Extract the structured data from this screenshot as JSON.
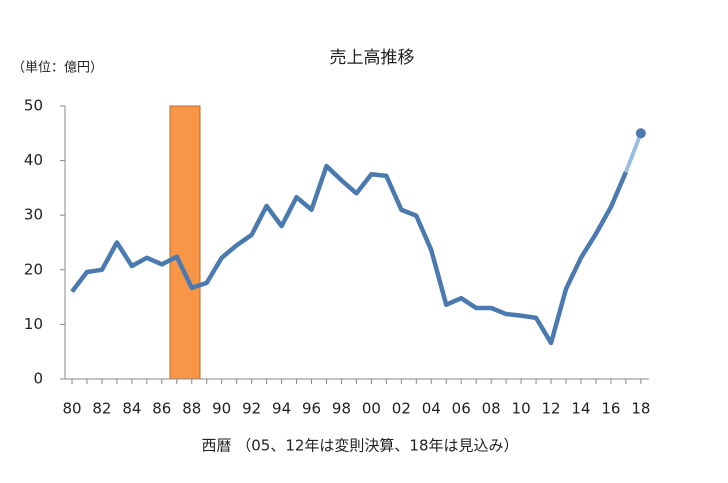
{
  "chart_data": {
    "type": "line",
    "title": "売上高推移",
    "y_label": "（単位：億円）",
    "x_label": "西暦 （05、12年は変則決算、18年は見込み）",
    "categories": [
      "80",
      null,
      "82",
      null,
      "84",
      null,
      "86",
      null,
      "88",
      null,
      "90",
      null,
      "92",
      null,
      "94",
      null,
      "96",
      null,
      "98",
      null,
      "00",
      null,
      "02",
      null,
      "04",
      null,
      "06",
      null,
      "08",
      null,
      "10",
      null,
      "12",
      null,
      "14",
      null,
      "16",
      null,
      "18"
    ],
    "series": [
      {
        "color": "#4a7ab0",
        "values": [
          16,
          19.6,
          20,
          25,
          20.7,
          22.2,
          21,
          22.4,
          16.7,
          17.6,
          22.2,
          24.5,
          26.4,
          31.7,
          28,
          33.3,
          31,
          39,
          36.4,
          34,
          37.5,
          37.2,
          31,
          29.9,
          23.6,
          13.6,
          14.8,
          13,
          13,
          11.9,
          11.6,
          11.2,
          6.6,
          16.5,
          22.2,
          26.6,
          31.5,
          37.9,
          null
        ]
      },
      {
        "color": "#9dbde0",
        "values": [
          null,
          null,
          null,
          null,
          null,
          null,
          null,
          null,
          null,
          null,
          null,
          null,
          null,
          null,
          null,
          null,
          null,
          null,
          null,
          null,
          null,
          null,
          null,
          null,
          null,
          null,
          null,
          null,
          null,
          null,
          null,
          null,
          null,
          null,
          null,
          null,
          null,
          37.9,
          45
        ]
      }
    ],
    "ylim": [
      0,
      50
    ],
    "yticks": [
      0,
      10,
      20,
      30,
      40,
      50
    ]
  }
}
